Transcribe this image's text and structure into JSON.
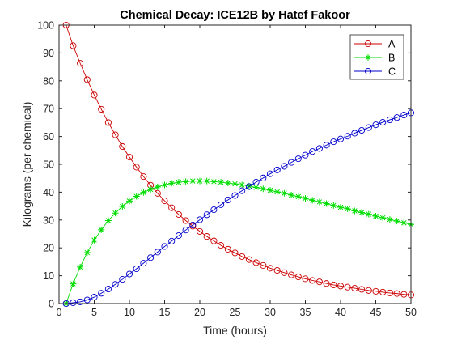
{
  "chart_data": {
    "type": "line",
    "title": "Chemical Decay: ICE12B by Hatef Fakoor",
    "xlabel": "Time (hours)",
    "ylabel": "Kilograms (per chemical)",
    "xlim": [
      0,
      50
    ],
    "ylim": [
      0,
      100
    ],
    "xticks": [
      0,
      5,
      10,
      15,
      20,
      25,
      30,
      35,
      40,
      45,
      50
    ],
    "yticks": [
      0,
      10,
      20,
      30,
      40,
      50,
      60,
      70,
      80,
      90,
      100
    ],
    "grid": false,
    "legend_position": "top-right",
    "x": [
      1,
      2,
      3,
      4,
      5,
      6,
      7,
      8,
      9,
      10,
      11,
      12,
      13,
      14,
      15,
      16,
      17,
      18,
      19,
      20,
      21,
      22,
      23,
      24,
      25,
      26,
      27,
      28,
      29,
      30,
      31,
      32,
      33,
      34,
      35,
      36,
      37,
      38,
      39,
      40,
      41,
      42,
      43,
      44,
      45,
      46,
      47,
      48,
      49,
      50
    ],
    "series": [
      {
        "name": "A",
        "color": "#cc0000",
        "marker": "circle",
        "values": [
          100,
          92.6,
          86.3,
          80.4,
          74.9,
          69.8,
          65.0,
          60.6,
          56.4,
          52.6,
          49.0,
          45.6,
          42.5,
          39.6,
          36.9,
          34.4,
          32.0,
          29.8,
          27.8,
          25.9,
          24.1,
          22.5,
          20.9,
          19.5,
          18.2,
          16.9,
          15.8,
          14.7,
          13.7,
          12.7,
          11.9,
          11.1,
          10.3,
          9.6,
          8.9,
          8.3,
          7.8,
          7.2,
          6.7,
          6.3,
          5.9,
          5.5,
          5.1,
          4.7,
          4.4,
          4.1,
          3.8,
          3.6,
          3.3,
          3.1
        ]
      },
      {
        "name": "B",
        "color": "#00dd00",
        "marker": "star",
        "values": [
          0,
          7.1,
          13.1,
          18.3,
          22.8,
          26.5,
          29.8,
          32.5,
          34.9,
          36.8,
          38.5,
          39.9,
          41.0,
          41.9,
          42.6,
          43.2,
          43.6,
          43.8,
          44.0,
          44.0,
          44.0,
          43.8,
          43.6,
          43.3,
          43.0,
          42.6,
          42.2,
          41.7,
          41.2,
          40.7,
          40.1,
          39.6,
          39.0,
          38.4,
          37.8,
          37.1,
          36.5,
          35.9,
          35.2,
          34.6,
          34.0,
          33.3,
          32.7,
          32.1,
          31.4,
          30.8,
          30.2,
          29.6,
          29.0,
          28.4
        ]
      },
      {
        "name": "C",
        "color": "#0000cc",
        "marker": "circle",
        "values": [
          0,
          0.3,
          0.6,
          1.3,
          2.3,
          3.7,
          5.2,
          6.9,
          8.7,
          10.6,
          12.5,
          14.5,
          16.5,
          18.5,
          20.5,
          22.4,
          24.4,
          26.4,
          28.2,
          30.1,
          31.9,
          33.7,
          35.5,
          37.2,
          38.8,
          40.5,
          42.0,
          43.6,
          45.1,
          46.6,
          48.0,
          49.3,
          50.7,
          52.0,
          53.3,
          54.6,
          55.7,
          56.9,
          58.1,
          59.1,
          60.1,
          61.2,
          62.2,
          63.2,
          64.2,
          65.1,
          66.0,
          66.8,
          67.7,
          68.5
        ]
      }
    ]
  }
}
